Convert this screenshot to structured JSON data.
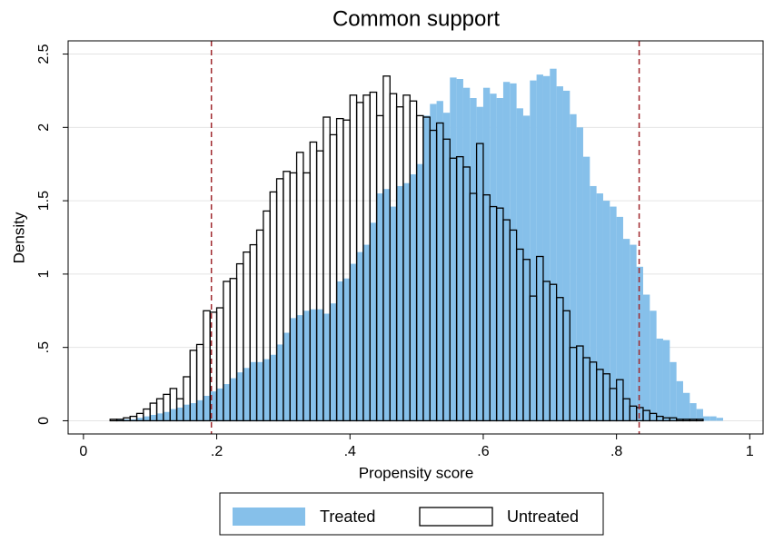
{
  "chart_data": {
    "type": "histogram",
    "title": "Common support",
    "x_label": "Propensity score",
    "y_label": "Density",
    "bins": [
      0.04,
      0.05,
      0.06,
      0.07,
      0.08,
      0.09,
      0.1,
      0.11,
      0.12,
      0.13,
      0.14,
      0.15,
      0.16,
      0.17,
      0.18,
      0.19,
      0.2,
      0.21,
      0.22,
      0.23,
      0.24,
      0.25,
      0.26,
      0.27,
      0.28,
      0.29,
      0.3,
      0.31,
      0.32,
      0.33,
      0.34,
      0.35,
      0.36,
      0.37,
      0.38,
      0.39,
      0.4,
      0.41,
      0.42,
      0.43,
      0.44,
      0.45,
      0.46,
      0.47,
      0.48,
      0.49,
      0.5,
      0.51,
      0.52,
      0.53,
      0.54,
      0.55,
      0.56,
      0.57,
      0.58,
      0.59,
      0.6,
      0.61,
      0.62,
      0.63,
      0.64,
      0.65,
      0.66,
      0.67,
      0.68,
      0.69,
      0.7,
      0.71,
      0.72,
      0.73,
      0.74,
      0.75,
      0.76,
      0.77,
      0.78,
      0.79,
      0.8,
      0.81,
      0.82,
      0.83,
      0.84,
      0.85,
      0.86,
      0.87,
      0.88,
      0.89,
      0.9,
      0.91,
      0.92,
      0.93,
      0.94,
      0.95,
      0.96
    ],
    "series": [
      {
        "name": "Treated",
        "color": "#86c0ea",
        "outline": false,
        "values": [
          0,
          0.01,
          0.01,
          0.01,
          0.02,
          0.03,
          0.04,
          0.05,
          0.06,
          0.08,
          0.09,
          0.11,
          0.12,
          0.14,
          0.17,
          0.2,
          0.22,
          0.25,
          0.29,
          0.33,
          0.36,
          0.4,
          0.4,
          0.42,
          0.45,
          0.52,
          0.6,
          0.7,
          0.72,
          0.75,
          0.76,
          0.76,
          0.73,
          0.8,
          0.95,
          0.97,
          1.07,
          1.15,
          1.2,
          1.35,
          1.55,
          1.58,
          1.46,
          1.6,
          1.62,
          1.68,
          1.75,
          2.08,
          2.16,
          2.18,
          2.1,
          2.34,
          2.33,
          2.27,
          2.2,
          2.14,
          2.27,
          2.23,
          2.2,
          2.31,
          2.3,
          2.13,
          2.08,
          2.32,
          2.36,
          2.35,
          2.4,
          2.28,
          2.25,
          2.09,
          2.0,
          1.8,
          1.6,
          1.55,
          1.5,
          1.46,
          1.39,
          1.24,
          1.2,
          1.05,
          0.86,
          0.75,
          0.56,
          0.55,
          0.4,
          0.27,
          0.19,
          0.12,
          0.08,
          0.03,
          0.03,
          0.02
        ]
      },
      {
        "name": "Untreated",
        "color": "#000000",
        "outline": true,
        "values": [
          0.01,
          0.01,
          0.02,
          0.03,
          0.05,
          0.08,
          0.12,
          0.15,
          0.18,
          0.22,
          0.15,
          0.3,
          0.48,
          0.52,
          0.75,
          0.74,
          0.77,
          0.95,
          0.97,
          1.07,
          1.15,
          1.2,
          1.3,
          1.43,
          1.56,
          1.65,
          1.7,
          1.69,
          1.83,
          1.69,
          1.9,
          1.84,
          2.07,
          1.95,
          2.06,
          2.05,
          2.22,
          2.17,
          2.22,
          2.24,
          2.08,
          2.35,
          2.23,
          2.14,
          2.22,
          2.18,
          2.08,
          2.07,
          1.98,
          2.03,
          1.92,
          1.79,
          1.8,
          1.73,
          1.55,
          1.89,
          1.54,
          1.46,
          1.45,
          1.37,
          1.3,
          1.17,
          1.1,
          0.85,
          1.12,
          0.95,
          0.93,
          0.84,
          0.75,
          0.5,
          0.51,
          0.43,
          0.4,
          0.35,
          0.32,
          0.22,
          0.28,
          0.15,
          0.1,
          0.09,
          0.07,
          0.05,
          0.03,
          0.02,
          0.02,
          0.01,
          0.01,
          0.01,
          0.01,
          0,
          0,
          0
        ]
      }
    ],
    "xlines": [
      0.192,
      0.834
    ],
    "xline_color": "#a0282d",
    "xlim": [
      -0.023,
      1.02
    ],
    "ylim": [
      -0.09,
      2.59
    ],
    "xticks": [
      0,
      {
        "value": 0.2,
        "label": ".2"
      },
      {
        "value": 0.4,
        "label": ".4"
      },
      {
        "value": 0.6,
        "label": ".6"
      },
      {
        "value": 0.8,
        "label": ".8"
      },
      1
    ],
    "yticks": [
      0,
      {
        "value": 0.5,
        "label": ".5"
      },
      1,
      1.5,
      2,
      2.5
    ],
    "grid": true,
    "legend": "bottom"
  }
}
